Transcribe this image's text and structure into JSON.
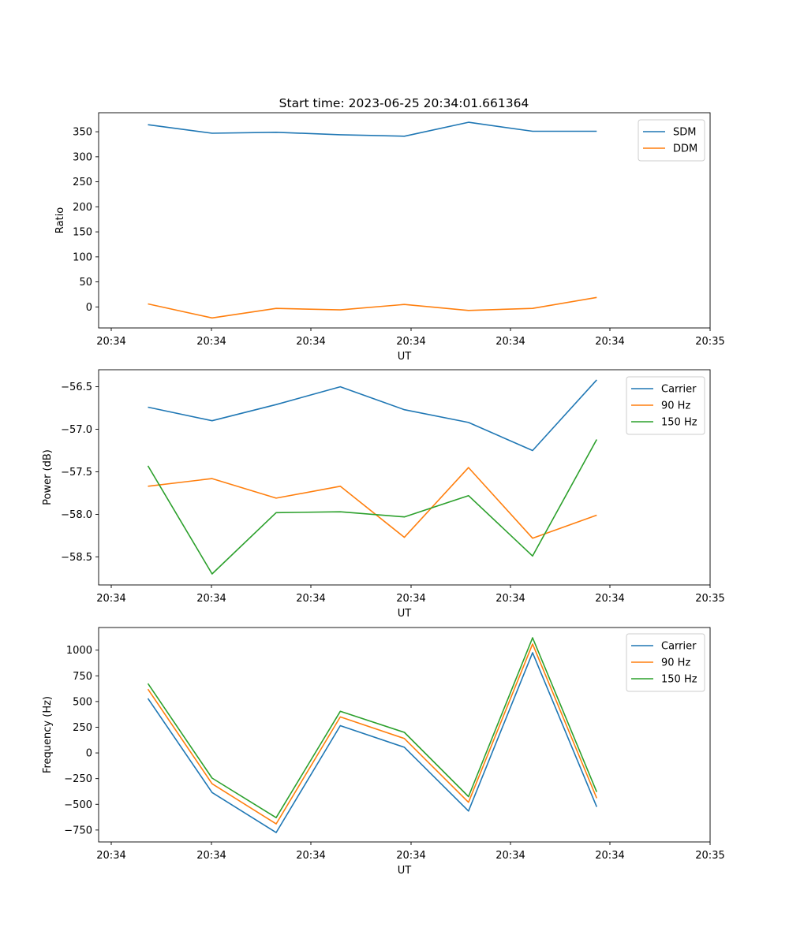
{
  "figure_title": "Start time: 2023-06-25 20:34:01.661364",
  "chart_data": [
    {
      "type": "line",
      "title": "Start time: 2023-06-25 20:34:01.661364",
      "xlabel": "UT",
      "ylabel": "Ratio",
      "x_tick_labels": [
        "20:34",
        "20:34",
        "20:34",
        "20:34",
        "20:34",
        "20:34",
        "20:35"
      ],
      "y_ticks": [
        0,
        50,
        100,
        150,
        200,
        250,
        300,
        350
      ],
      "xlim": [
        0,
        6.2
      ],
      "ylim": [
        -42,
        388
      ],
      "x": [
        0.5,
        1.15,
        1.8,
        2.45,
        3.1,
        3.75,
        4.4,
        5.05
      ],
      "series": [
        {
          "name": "SDM",
          "color": "#1f77b4",
          "values": [
            364,
            347,
            349,
            344,
            341,
            369,
            351,
            351
          ]
        },
        {
          "name": "DDM",
          "color": "#ff7f0e",
          "values": [
            6,
            -22,
            -3,
            -6,
            5,
            -7,
            -3,
            19
          ]
        }
      ],
      "grid": false,
      "legend": "upper right"
    },
    {
      "type": "line",
      "xlabel": "UT",
      "ylabel": "Power (dB)",
      "x_tick_labels": [
        "20:34",
        "20:34",
        "20:34",
        "20:34",
        "20:34",
        "20:34",
        "20:35"
      ],
      "y_ticks": [
        -58.5,
        -58.0,
        -57.5,
        -57.0,
        -56.5
      ],
      "y_tick_labels": [
        "−58.5",
        "−58.0",
        "−57.5",
        "−57.0",
        "−56.5"
      ],
      "xlim": [
        0,
        6.2
      ],
      "ylim": [
        -58.83,
        -56.3
      ],
      "x": [
        0.5,
        1.15,
        1.8,
        2.45,
        3.1,
        3.75,
        4.4,
        5.05
      ],
      "series": [
        {
          "name": "Carrier",
          "color": "#1f77b4",
          "values": [
            -56.74,
            -56.9,
            -56.71,
            -56.5,
            -56.77,
            -56.92,
            -57.25,
            -56.42
          ]
        },
        {
          "name": "90 Hz",
          "color": "#ff7f0e",
          "values": [
            -57.67,
            -57.58,
            -57.81,
            -57.67,
            -58.27,
            -57.45,
            -58.28,
            -58.01
          ]
        },
        {
          "name": "150 Hz",
          "color": "#2ca02c",
          "values": [
            -57.43,
            -58.7,
            -57.98,
            -57.97,
            -58.03,
            -57.78,
            -58.49,
            -57.12
          ]
        }
      ],
      "grid": false,
      "legend": "upper right"
    },
    {
      "type": "line",
      "xlabel": "UT",
      "ylabel": "Frequency (Hz)",
      "x_tick_labels": [
        "20:34",
        "20:34",
        "20:34",
        "20:34",
        "20:34",
        "20:34",
        "20:35"
      ],
      "y_ticks": [
        -750,
        -500,
        -250,
        0,
        250,
        500,
        750,
        1000
      ],
      "y_tick_labels": [
        "−750",
        "−500",
        "−250",
        "0",
        "250",
        "500",
        "750",
        "1000"
      ],
      "xlim": [
        0,
        6.2
      ],
      "ylim": [
        -866,
        1220
      ],
      "x": [
        0.5,
        1.15,
        1.8,
        2.45,
        3.1,
        3.75,
        4.4,
        5.05
      ],
      "series": [
        {
          "name": "Carrier",
          "color": "#1f77b4",
          "values": [
            530,
            -385,
            -775,
            265,
            55,
            -565,
            975,
            -525
          ]
        },
        {
          "name": "90 Hz",
          "color": "#ff7f0e",
          "values": [
            620,
            -300,
            -690,
            350,
            140,
            -480,
            1060,
            -440
          ]
        },
        {
          "name": "150 Hz",
          "color": "#2ca02c",
          "values": [
            675,
            -245,
            -630,
            405,
            200,
            -425,
            1120,
            -380
          ]
        }
      ],
      "grid": false,
      "legend": "upper right"
    }
  ]
}
